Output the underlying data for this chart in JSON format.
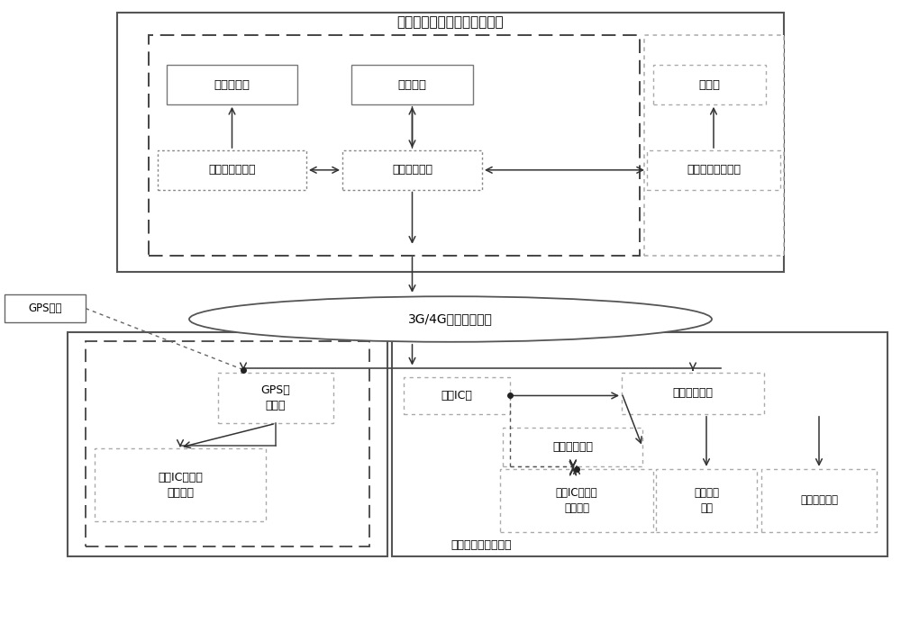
{
  "bg": "#ffffff",
  "title_top": "公交中心后台调度管理子系统",
  "label_3g": "3G/4G网络通讯系统",
  "label_bus_sub": "公交电子站牌子系统",
  "box_labels": {
    "da_ping": "大屏幕显示",
    "fa_bu": "发布系统",
    "xian_shi": "显示屏",
    "zhong_xin": "中心调度服务器",
    "wang_luo": "网络通讯设备",
    "ke_hu": "客户端管理计算机",
    "gps_star": "GPS卫星",
    "gps_che": "GPS车\n载终端",
    "ic_che": "用户IC卡射频\n识别设备",
    "user_ic": "用户IC卡",
    "wu_xian": "无线通讯模块",
    "zhan_pai": "公交电子站牌",
    "ic_zhan": "用户IC卡射频\n识别设备",
    "xin_fa": "信息发布\n系统",
    "xin_jie": "信息接收系统"
  }
}
